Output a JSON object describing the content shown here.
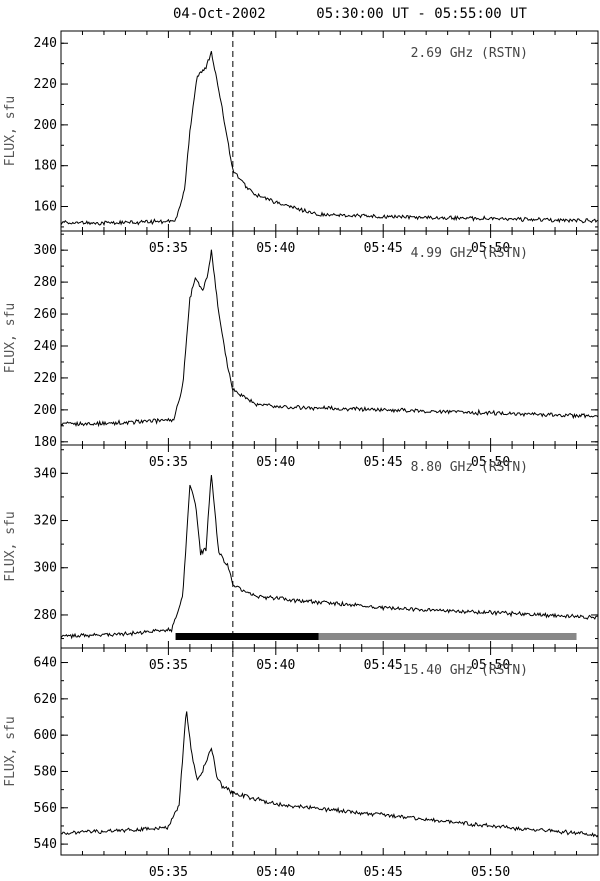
{
  "title": "04-Oct-2002      05:30:00 UT - 05:55:00 UT",
  "chart_data": [
    {
      "type": "line",
      "label": "2.69 GHz (RSTN)",
      "ylabel": "FLUX, sfu",
      "ylim": [
        148,
        246
      ],
      "yticks": [
        160,
        180,
        200,
        220,
        240
      ],
      "xlim": [
        "05:30:00",
        "05:55:00"
      ],
      "xticks": [
        "05:35",
        "05:40",
        "05:45",
        "05:50"
      ],
      "x": [
        "05:30:00",
        "05:33:00",
        "05:35:20",
        "05:35:45",
        "05:36:00",
        "05:36:20",
        "05:36:45",
        "05:37:00",
        "05:37:30",
        "05:38:00",
        "05:38:30",
        "05:39:00",
        "05:40:00",
        "05:41:00",
        "05:42:00",
        "05:45:00",
        "05:50:00",
        "05:55:00"
      ],
      "y": [
        152,
        152,
        153,
        168,
        197,
        224,
        228,
        236,
        208,
        178,
        171,
        166,
        162,
        159,
        156,
        155,
        154,
        153
      ]
    },
    {
      "type": "line",
      "label": "4.99 GHz (RSTN)",
      "ylabel": "FLUX, sfu",
      "ylim": [
        178,
        312
      ],
      "yticks": [
        180,
        200,
        220,
        240,
        260,
        280,
        300
      ],
      "xlim": [
        "05:30:00",
        "05:55:00"
      ],
      "xticks": [
        "05:35",
        "05:40",
        "05:45",
        "05:50"
      ],
      "x": [
        "05:30:00",
        "05:33:00",
        "05:35:15",
        "05:35:40",
        "05:36:00",
        "05:36:15",
        "05:36:35",
        "05:36:50",
        "05:37:00",
        "05:37:20",
        "05:37:45",
        "05:38:00",
        "05:39:00",
        "05:40:00",
        "05:45:00",
        "05:50:00",
        "05:55:00"
      ],
      "y": [
        191,
        192,
        194,
        215,
        270,
        283,
        274,
        285,
        300,
        262,
        228,
        213,
        204,
        202,
        200,
        198,
        196
      ]
    },
    {
      "type": "line",
      "label": "8.80 GHz (RSTN)",
      "ylabel": "FLUX, sfu",
      "ylim": [
        266,
        352
      ],
      "yticks": [
        280,
        300,
        320,
        340
      ],
      "xlim": [
        "05:30:00",
        "05:55:00"
      ],
      "xticks": [
        "05:35",
        "05:40",
        "05:45",
        "05:50"
      ],
      "x": [
        "05:30:00",
        "05:33:00",
        "05:35:10",
        "05:35:40",
        "05:36:00",
        "05:36:15",
        "05:36:30",
        "05:36:45",
        "05:37:00",
        "05:37:20",
        "05:37:45",
        "05:38:00",
        "05:38:30",
        "05:39:00",
        "05:40:00",
        "05:45:00",
        "05:50:00",
        "05:55:00"
      ],
      "y": [
        271,
        272,
        274,
        288,
        335,
        328,
        306,
        308,
        340,
        307,
        301,
        293,
        290,
        288,
        287,
        283,
        281,
        279
      ]
    },
    {
      "type": "line",
      "label": "15.40 GHz (RSTN)",
      "ylabel": "FLUX, sfu",
      "ylim": [
        534,
        648
      ],
      "yticks": [
        540,
        560,
        580,
        600,
        620,
        640
      ],
      "xlim": [
        "05:30:00",
        "05:55:00"
      ],
      "xticks": [
        "05:35",
        "05:40",
        "05:45",
        "05:50"
      ],
      "x": [
        "05:30:00",
        "05:32:00",
        "05:35:00",
        "05:35:30",
        "05:35:50",
        "05:36:05",
        "05:36:20",
        "05:36:35",
        "05:36:50",
        "05:37:00",
        "05:37:15",
        "05:37:30",
        "05:38:00",
        "05:39:00",
        "05:40:00",
        "05:45:00",
        "05:50:00",
        "05:55:00"
      ],
      "y": [
        546,
        547,
        549,
        562,
        614,
        590,
        575,
        580,
        588,
        593,
        578,
        572,
        568,
        565,
        562,
        556,
        550,
        545
      ]
    }
  ],
  "marker_time": "05:38:00",
  "bars": [
    {
      "start": "05:35:20",
      "end": "05:42:00",
      "color": "#000000"
    },
    {
      "start": "05:42:00",
      "end": "05:54:00",
      "color": "#888888"
    }
  ]
}
